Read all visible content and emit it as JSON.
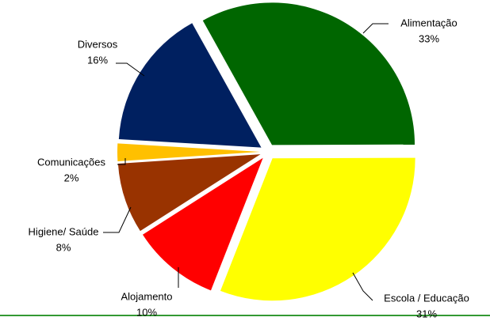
{
  "chart_data": {
    "type": "pie",
    "categories": [
      "Alimentação",
      "Escola / Educação",
      "Alojamento",
      "Higiene/ Saúde",
      "Comunicações",
      "Diversos"
    ],
    "values": [
      33,
      31,
      10,
      8,
      2,
      16
    ],
    "value_labels": [
      "33%",
      "31%",
      "10%",
      "8%",
      "2%",
      "16%"
    ],
    "colors": [
      "#006600",
      "#ffff00",
      "#ff0000",
      "#993300",
      "#ffc000",
      "#002060"
    ]
  }
}
